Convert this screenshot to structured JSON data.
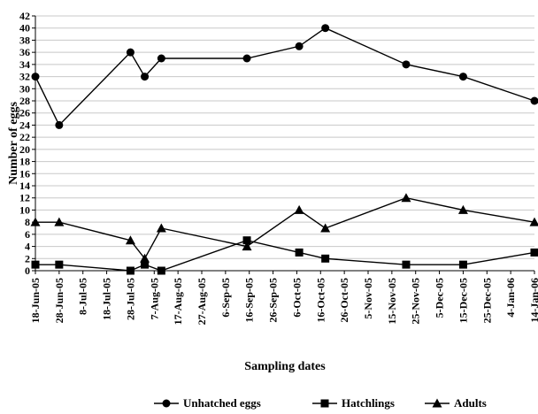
{
  "chart_data": {
    "type": "line",
    "title": "",
    "xlabel": "Sampling dates",
    "ylabel": "Number of eggs",
    "ylim": [
      0,
      42
    ],
    "y_ticks": [
      0,
      2,
      4,
      6,
      8,
      10,
      12,
      14,
      16,
      18,
      20,
      22,
      24,
      26,
      28,
      30,
      32,
      34,
      36,
      38,
      40,
      42
    ],
    "x_ticks": [
      "18-Jun-05",
      "28-Jun-05",
      "8-Jul-05",
      "18-Jul-05",
      "28-Jul-05",
      "7-Aug-05",
      "17-Aug-05",
      "27-Aug-05",
      "6-Sep-05",
      "16-Sep-05",
      "26-Sep-05",
      "6-Oct-05",
      "16-Oct-05",
      "26-Oct-05",
      "5-Nov-05",
      "15-Nov-05",
      "25-Nov-05",
      "5-Dec-05",
      "15-Dec-05",
      "25-Dec-05",
      "4-Jan-06",
      "14-Jan-06"
    ],
    "x_range": [
      "2005-06-18",
      "2006-01-14"
    ],
    "grid": {
      "horizontal": true,
      "vertical": false
    },
    "legend_position": "bottom",
    "series": [
      {
        "name": "Unhatched eggs",
        "marker": "circle",
        "points": [
          {
            "x": "2005-06-18",
            "y": 32
          },
          {
            "x": "2005-06-28",
            "y": 24
          },
          {
            "x": "2005-07-28",
            "y": 36
          },
          {
            "x": "2005-08-03",
            "y": 32
          },
          {
            "x": "2005-08-10",
            "y": 35
          },
          {
            "x": "2005-09-15",
            "y": 35
          },
          {
            "x": "2005-10-07",
            "y": 37
          },
          {
            "x": "2005-10-18",
            "y": 40
          },
          {
            "x": "2005-11-21",
            "y": 34
          },
          {
            "x": "2005-12-15",
            "y": 32
          },
          {
            "x": "2006-01-14",
            "y": 28
          }
        ]
      },
      {
        "name": "Hatchlings",
        "marker": "square",
        "points": [
          {
            "x": "2005-06-18",
            "y": 1
          },
          {
            "x": "2005-06-28",
            "y": 1
          },
          {
            "x": "2005-07-28",
            "y": 0
          },
          {
            "x": "2005-08-03",
            "y": 1
          },
          {
            "x": "2005-08-10",
            "y": 0
          },
          {
            "x": "2005-09-15",
            "y": 5
          },
          {
            "x": "2005-10-07",
            "y": 3
          },
          {
            "x": "2005-10-18",
            "y": 2
          },
          {
            "x": "2005-11-21",
            "y": 1
          },
          {
            "x": "2005-12-15",
            "y": 1
          },
          {
            "x": "2006-01-14",
            "y": 3
          }
        ]
      },
      {
        "name": "Adults",
        "marker": "triangle",
        "points": [
          {
            "x": "2005-06-18",
            "y": 8
          },
          {
            "x": "2005-06-28",
            "y": 8
          },
          {
            "x": "2005-07-28",
            "y": 5
          },
          {
            "x": "2005-08-03",
            "y": 2
          },
          {
            "x": "2005-08-10",
            "y": 7
          },
          {
            "x": "2005-09-15",
            "y": 4
          },
          {
            "x": "2005-10-07",
            "y": 10
          },
          {
            "x": "2005-10-18",
            "y": 7
          },
          {
            "x": "2005-11-21",
            "y": 12
          },
          {
            "x": "2005-12-15",
            "y": 10
          },
          {
            "x": "2006-01-14",
            "y": 8
          }
        ]
      }
    ]
  }
}
